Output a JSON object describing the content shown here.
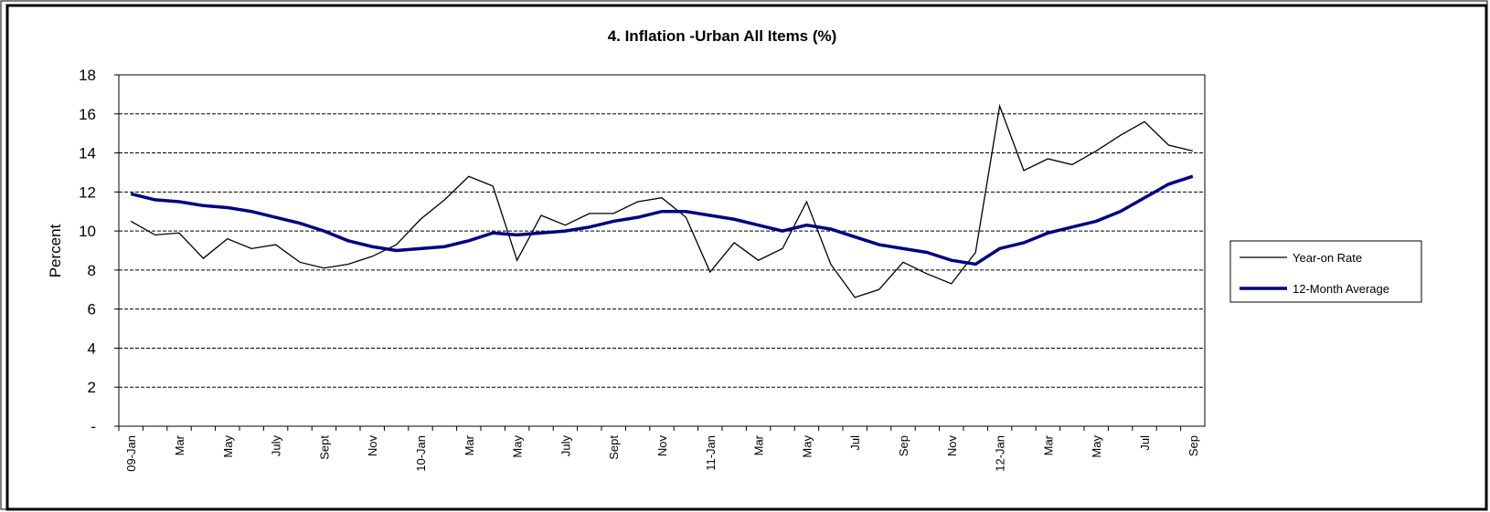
{
  "chart_data": {
    "type": "line",
    "title": "4. Inflation -Urban All Items (%)",
    "y_label": "Percent",
    "categories": [
      "09-Jan",
      null,
      "Mar",
      null,
      "May",
      null,
      "July",
      null,
      "Sept",
      null,
      "Nov",
      null,
      "10-Jan",
      null,
      "Mar",
      null,
      "May",
      null,
      "July",
      null,
      "Sept",
      null,
      "Nov",
      null,
      "11-Jan",
      null,
      "Mar",
      null,
      "May",
      null,
      "Jul",
      null,
      "Sep",
      null,
      "Nov",
      null,
      "12-Jan",
      null,
      "Mar",
      null,
      "May",
      null,
      "Jul",
      null,
      "Sep"
    ],
    "series": [
      {
        "name": "Year-on Rate",
        "color": "#000000",
        "values": [
          10.5,
          9.8,
          9.9,
          8.6,
          9.6,
          9.1,
          9.3,
          8.4,
          8.1,
          8.3,
          8.7,
          9.3,
          10.6,
          11.6,
          12.8,
          12.3,
          8.5,
          10.8,
          10.3,
          10.9,
          10.9,
          11.5,
          11.7,
          10.7,
          7.9,
          9.4,
          8.5,
          9.1,
          11.5,
          8.3,
          6.6,
          7.0,
          8.4,
          7.8,
          7.3,
          8.9,
          16.4,
          13.1,
          13.7,
          13.4,
          14.1,
          14.9,
          15.6,
          14.4,
          14.1
        ]
      },
      {
        "name": "12-Month Average",
        "color": "#000080",
        "values": [
          11.9,
          11.6,
          11.5,
          11.3,
          11.2,
          11.0,
          10.7,
          10.4,
          10.0,
          9.5,
          9.2,
          9.0,
          9.1,
          9.2,
          9.5,
          9.9,
          9.8,
          9.9,
          10.0,
          10.2,
          10.5,
          10.7,
          11.0,
          11.0,
          10.8,
          10.6,
          10.3,
          10.0,
          10.3,
          10.1,
          9.7,
          9.3,
          9.1,
          8.9,
          8.5,
          8.3,
          9.1,
          9.4,
          9.9,
          10.2,
          10.5,
          11.0,
          11.7,
          12.4,
          12.8
        ]
      }
    ],
    "ylim": [
      0,
      18
    ],
    "yticks": [
      {
        "value": 0,
        "label": "-"
      },
      2,
      4,
      6,
      8,
      10,
      12,
      14,
      16,
      18
    ],
    "grid": true,
    "legend": "right"
  }
}
